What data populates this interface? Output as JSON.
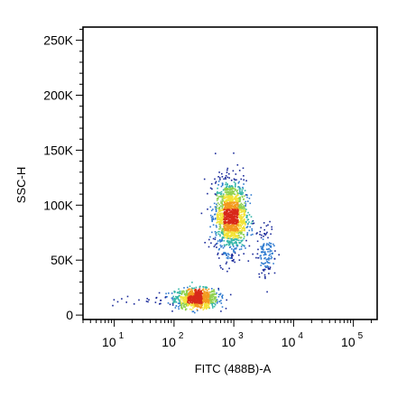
{
  "chart_data": {
    "type": "scatter",
    "title": "",
    "xlabel": "FITC (488B)-A",
    "ylabel": "SSC-H",
    "x_scale": "log",
    "x_ticks": [
      {
        "base": "10",
        "exp": "1",
        "value": 10
      },
      {
        "base": "10",
        "exp": "2",
        "value": 100
      },
      {
        "base": "10",
        "exp": "3",
        "value": 1000
      },
      {
        "base": "10",
        "exp": "4",
        "value": 10000
      },
      {
        "base": "10",
        "exp": "5",
        "value": 100000
      }
    ],
    "y_ticks": [
      {
        "label": "250K",
        "value": 250000
      },
      {
        "label": "200K",
        "value": 200000
      },
      {
        "label": "150K",
        "value": 150000
      },
      {
        "label": "100K",
        "value": 100000
      },
      {
        "label": "50K",
        "value": 50000
      },
      {
        "label": "0",
        "value": 0
      }
    ],
    "xlim": [
      3,
      250000
    ],
    "ylim": [
      -4000,
      262000
    ],
    "colormap": [
      "#1a2a9a",
      "#2f7bd0",
      "#35b6a8",
      "#8fd14f",
      "#f3e337",
      "#f39a1f",
      "#d82a1a"
    ],
    "populations": [
      {
        "center_log_x": 2.38,
        "center_y": 15000,
        "sd_log_x": 0.18,
        "sd_y": 4500,
        "count": 900
      },
      {
        "center_log_x": 2.95,
        "center_y": 90000,
        "sd_log_x": 0.13,
        "sd_y": 16000,
        "count": 1500
      },
      {
        "center_log_x": 3.55,
        "center_y": 58000,
        "sd_log_x": 0.08,
        "sd_y": 12000,
        "count": 130
      }
    ]
  }
}
